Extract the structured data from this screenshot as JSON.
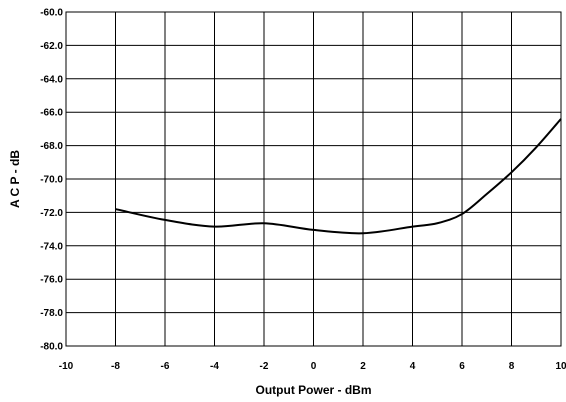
{
  "chart_data": {
    "type": "line",
    "title": "",
    "xlabel": "Output Power - dBm",
    "ylabel": "A C P - dB",
    "xlim": [
      -10,
      10
    ],
    "ylim": [
      -80,
      -60
    ],
    "x_ticks": [
      -10,
      -8,
      -6,
      -4,
      -2,
      0,
      2,
      4,
      6,
      8,
      10
    ],
    "y_ticks": [
      -60,
      -62,
      -64,
      -66,
      -68,
      -70,
      -72,
      -74,
      -76,
      -78,
      -80
    ],
    "x_tick_labels": [
      "-10",
      "-8",
      "-6",
      "-4",
      "-2",
      "0",
      "2",
      "4",
      "6",
      "8",
      "10"
    ],
    "y_tick_labels": [
      "-60.0",
      "-62.0",
      "-64.0",
      "-66.0",
      "-68.0",
      "-70.0",
      "-72.0",
      "-74.0",
      "-76.0",
      "-78.0",
      "-80.0"
    ],
    "grid": true,
    "legend": "none",
    "series": [
      {
        "color": "#000000",
        "x": [
          -8,
          -6,
          -4,
          -2,
          0,
          2,
          4,
          5,
          6,
          7,
          8,
          9,
          10
        ],
        "y": [
          -71.8,
          -72.45,
          -72.85,
          -72.65,
          -73.05,
          -73.25,
          -72.85,
          -72.65,
          -72.1,
          -70.9,
          -69.6,
          -68.1,
          -66.4
        ]
      }
    ]
  }
}
